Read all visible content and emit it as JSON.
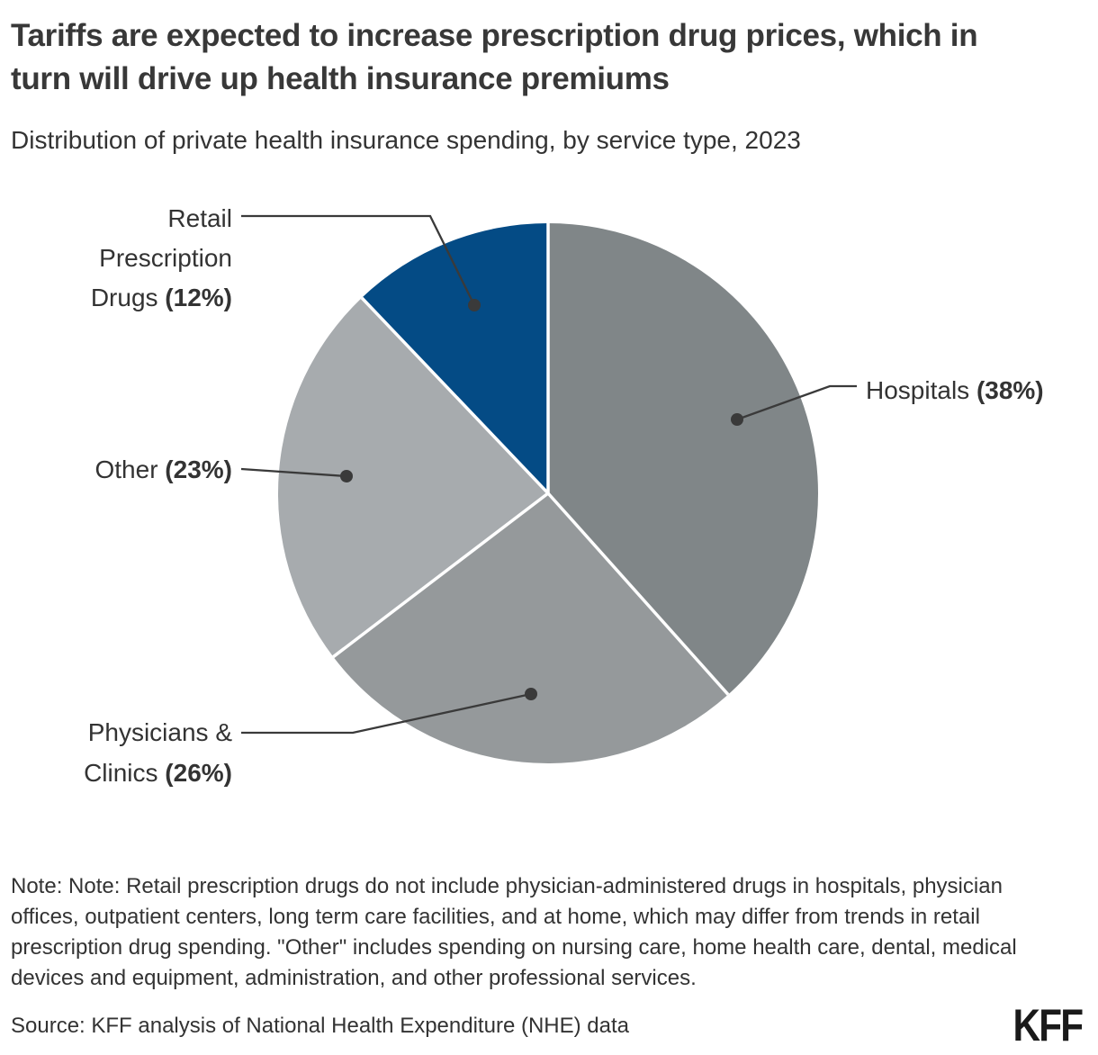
{
  "header": {
    "title": "Tariffs are expected to increase prescription drug prices, which in turn will drive up health insurance premiums",
    "subtitle": "Distribution of private health insurance spending, by service type, 2023"
  },
  "chart_data": {
    "type": "pie",
    "title": "Distribution of private health insurance spending, by service type, 2023",
    "unit": "percent",
    "start_angle_deg": 0,
    "direction": "clockwise",
    "label_style": "callout",
    "slices": [
      {
        "label": "Hospitals",
        "value": 38,
        "pct_label": "(38%)",
        "color": "#808688",
        "label_lines": [
          "Hospitals"
        ]
      },
      {
        "label": "Physicians & Clinics",
        "value": 26,
        "pct_label": "(26%)",
        "color": "#95999B",
        "label_lines": [
          "Physicians &",
          "Clinics"
        ]
      },
      {
        "label": "Other",
        "value": 23,
        "pct_label": "(23%)",
        "color": "#A7ABAE",
        "label_lines": [
          "Other"
        ]
      },
      {
        "label": "Retail Prescription Drugs",
        "value": 12,
        "pct_label": "(12%)",
        "color": "#044B85",
        "label_lines": [
          "Retail",
          "Prescription",
          "Drugs"
        ]
      }
    ],
    "colors": {
      "callout_line": "#3a3a3a",
      "separator": "#ffffff",
      "label_text": "#333333"
    }
  },
  "footer": {
    "note": "Note: Note: Retail prescription drugs do not include physician-administered drugs in hospitals, physician offices, outpatient centers, long term care facilities, and at home, which may differ from trends in retail prescription drug spending. \"Other\" includes spending on nursing care, home health care, dental, medical devices and equipment, administration, and other professional services.",
    "source": "Source: KFF analysis of National Health Expenditure (NHE) data",
    "logo": "KFF"
  }
}
